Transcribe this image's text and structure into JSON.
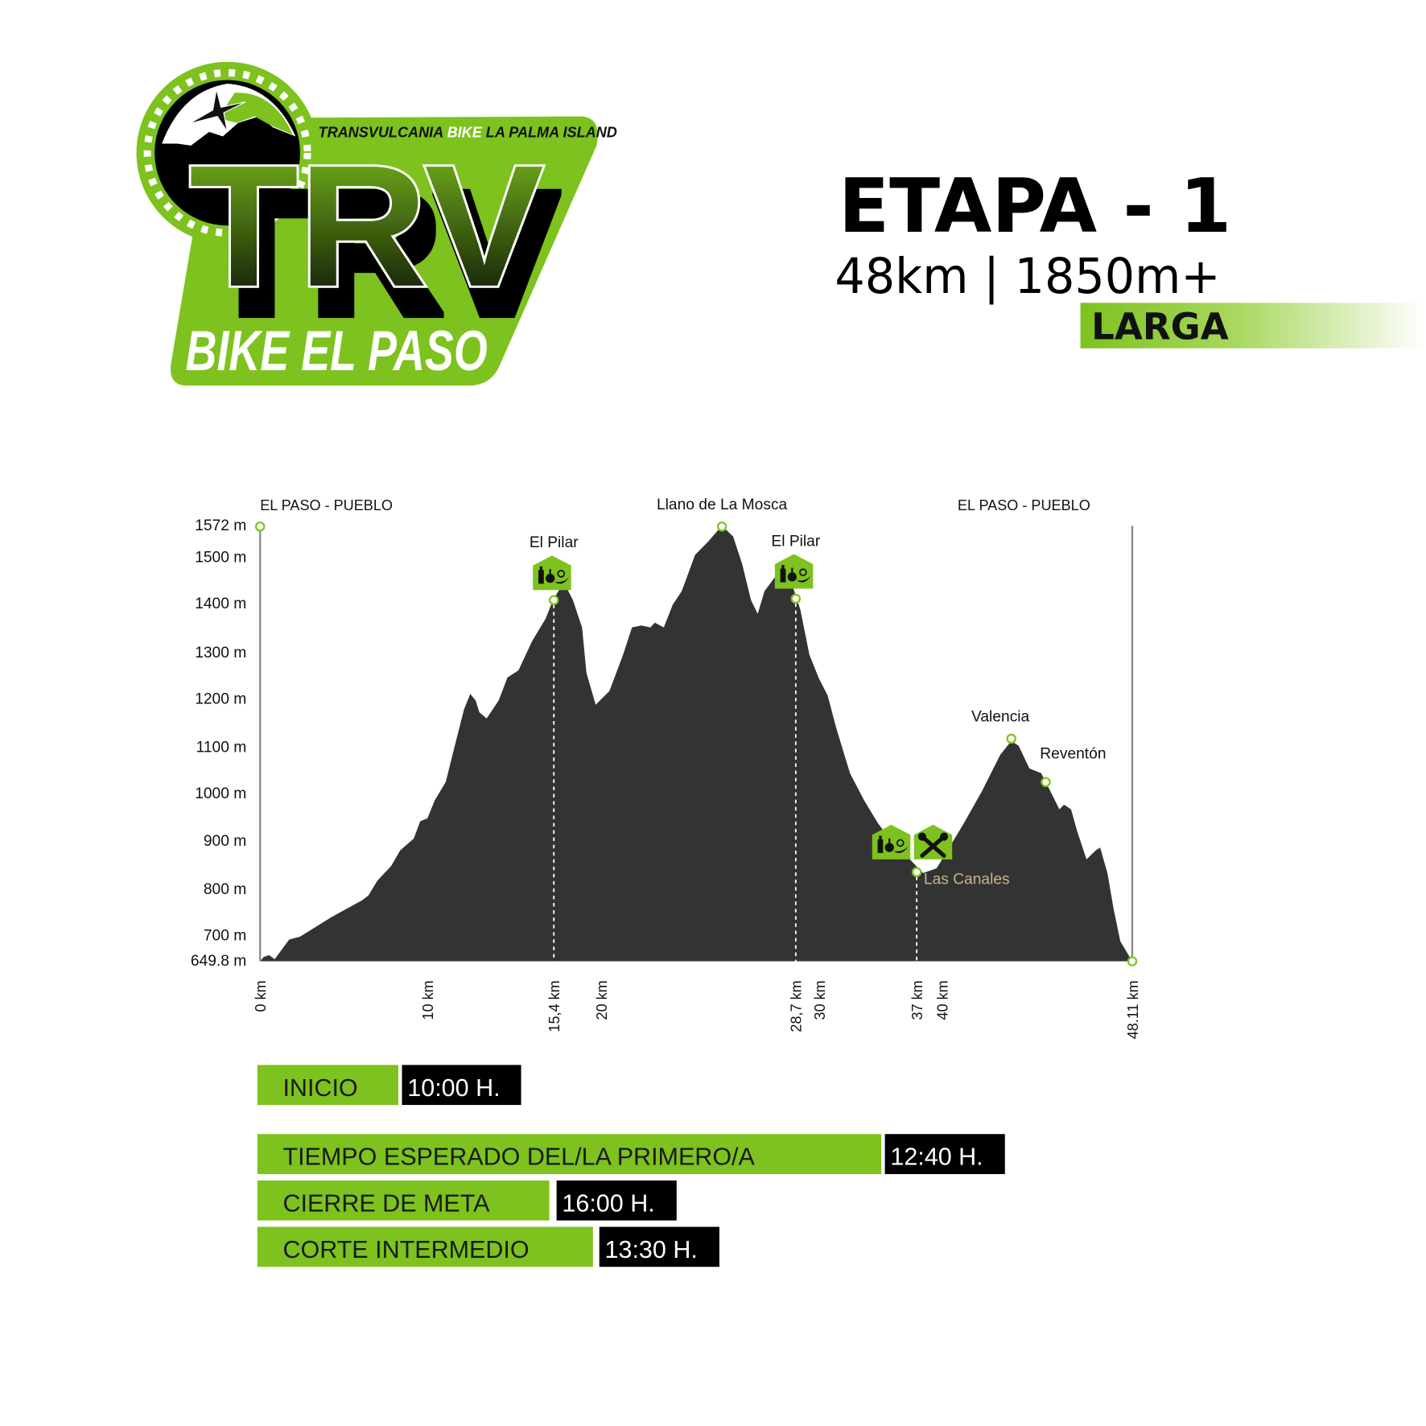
{
  "logo": {
    "tagline_part1": "TRANSVULCANIA ",
    "tagline_part2": "BIKE",
    "tagline_part3": " LA PALMA ISLAND",
    "wordmark": "TRV",
    "subtitle": "BIKE EL PASO"
  },
  "header": {
    "title": "ETAPA - 1",
    "stats": "48km | 1850m+",
    "category": "LARGA"
  },
  "colors": {
    "accent_green": "#7dc21e",
    "profile_fill": "#333333",
    "time_box": "#000000",
    "las_canales_label": "#c8b48a"
  },
  "chart_data": {
    "type": "area",
    "title": "",
    "xlabel": "",
    "ylabel": "",
    "x_unit": "km",
    "y_unit": "m",
    "ylim": [
      649.8,
      1572
    ],
    "xlim": [
      0,
      48.11
    ],
    "grid": false,
    "y_ticks": [
      "1572 m",
      "1500 m",
      "1400 m",
      "1300 m",
      "1200 m",
      "1100 m",
      "1000 m",
      "900 m",
      "800 m",
      "700 m",
      "649.8 m"
    ],
    "y_tick_values": [
      1572,
      1500,
      1400,
      1300,
      1200,
      1100,
      1000,
      900,
      800,
      700,
      649.8
    ],
    "x_ticks": [
      {
        "value": 0,
        "label": "0 km"
      },
      {
        "value": 10,
        "label": "10 km"
      },
      {
        "value": 15.4,
        "label": "15,4 km"
      },
      {
        "value": 20,
        "label": "20 km"
      },
      {
        "value": 28.7,
        "label": "28,7 km"
      },
      {
        "value": 30,
        "label": "30 km"
      },
      {
        "value": 37,
        "label": "37 km"
      },
      {
        "value": 40,
        "label": "40 km"
      },
      {
        "value": 48.11,
        "label": "48.11 km"
      }
    ],
    "start_label": "EL PASO - PUEBLO",
    "finish_label": "EL PASO - PUEBLO",
    "profile": [
      [
        0,
        649.8
      ],
      [
        0.22,
        659
      ],
      [
        0.54,
        663
      ],
      [
        0.87,
        654
      ],
      [
        1.74,
        696
      ],
      [
        2.39,
        702
      ],
      [
        4.29,
        744
      ],
      [
        6.09,
        779
      ],
      [
        6.47,
        789
      ],
      [
        7.01,
        821
      ],
      [
        7.83,
        852
      ],
      [
        8.37,
        885
      ],
      [
        9.18,
        910
      ],
      [
        9.57,
        947
      ],
      [
        10.0,
        953
      ],
      [
        10.31,
        991
      ],
      [
        10.78,
        1030
      ],
      [
        11.17,
        1107
      ],
      [
        11.56,
        1184
      ],
      [
        11.83,
        1217
      ],
      [
        12.06,
        1203
      ],
      [
        12.22,
        1178
      ],
      [
        12.53,
        1165
      ],
      [
        13.04,
        1203
      ],
      [
        13.42,
        1252
      ],
      [
        13.89,
        1267
      ],
      [
        14.47,
        1329
      ],
      [
        15.05,
        1377
      ],
      [
        15.36,
        1416
      ],
      [
        16.37,
        1454
      ],
      [
        17.26,
        1416
      ],
      [
        18.14,
        1358
      ],
      [
        18.58,
        1261
      ],
      [
        19.47,
        1194
      ],
      [
        20.37,
        1223
      ],
      [
        20.98,
        1300
      ],
      [
        21.38,
        1358
      ],
      [
        21.79,
        1362
      ],
      [
        22.2,
        1358
      ],
      [
        22.4,
        1368
      ],
      [
        22.8,
        1358
      ],
      [
        23.2,
        1406
      ],
      [
        23.6,
        1435
      ],
      [
        24.2,
        1512
      ],
      [
        24.8,
        1541
      ],
      [
        25.4,
        1574
      ],
      [
        25.9,
        1551
      ],
      [
        26.3,
        1493
      ],
      [
        26.7,
        1416
      ],
      [
        27.0,
        1387
      ],
      [
        27.3,
        1435
      ],
      [
        27.9,
        1473
      ],
      [
        28.5,
        1454
      ],
      [
        28.95,
        1396
      ],
      [
        29.45,
        1300
      ],
      [
        29.95,
        1252
      ],
      [
        30.6,
        1213
      ],
      [
        31.2,
        1146
      ],
      [
        32.2,
        1049
      ],
      [
        33.2,
        992
      ],
      [
        34.2,
        943
      ],
      [
        35.2,
        904
      ],
      [
        36.5,
        866
      ],
      [
        37.75,
        837
      ],
      [
        39.35,
        847
      ],
      [
        40.35,
        895
      ],
      [
        40.93,
        943
      ],
      [
        41.7,
        1011
      ],
      [
        42.48,
        1088
      ],
      [
        42.95,
        1117
      ],
      [
        43.26,
        1107
      ],
      [
        43.72,
        1059
      ],
      [
        44.22,
        1049
      ],
      [
        44.42,
        1030
      ],
      [
        45.0,
        972
      ],
      [
        45.2,
        982
      ],
      [
        45.5,
        972
      ],
      [
        45.77,
        924
      ],
      [
        46.16,
        866
      ],
      [
        46.55,
        885
      ],
      [
        46.74,
        891
      ],
      [
        47.05,
        837
      ],
      [
        47.32,
        760
      ],
      [
        47.6,
        692
      ],
      [
        48.11,
        649.8
      ]
    ],
    "waypoints": [
      {
        "name": "El Pilar",
        "km": 15.4,
        "elev": 1416,
        "icons": [
          "aid-station"
        ],
        "dashed": true
      },
      {
        "name": "Llano de La Mosca",
        "km": 25.4,
        "elev": 1572,
        "icons": [],
        "dashed": false
      },
      {
        "name": "El Pilar",
        "km": 28.7,
        "elev": 1419,
        "icons": [
          "aid-station"
        ],
        "dashed": true
      },
      {
        "name": "Las Canales",
        "km": 37,
        "elev": 839,
        "icons": [
          "aid-station",
          "mechanical-assistance"
        ],
        "dashed": true
      },
      {
        "name": "Valencia",
        "km": 42.95,
        "elev": 1122,
        "icons": [],
        "dashed": false
      },
      {
        "name": "Reventón",
        "km": 44.42,
        "elev": 1030,
        "icons": [],
        "dashed": false
      }
    ]
  },
  "schedule": [
    {
      "label": "INICIO",
      "time": "10:00 H."
    },
    {
      "label": "TIEMPO ESPERADO DEL/LA PRIMERO/A",
      "time": "12:40 H."
    },
    {
      "label": "CIERRE DE META",
      "time": "16:00 H."
    },
    {
      "label": "CORTE INTERMEDIO",
      "time": "13:30 H."
    }
  ]
}
